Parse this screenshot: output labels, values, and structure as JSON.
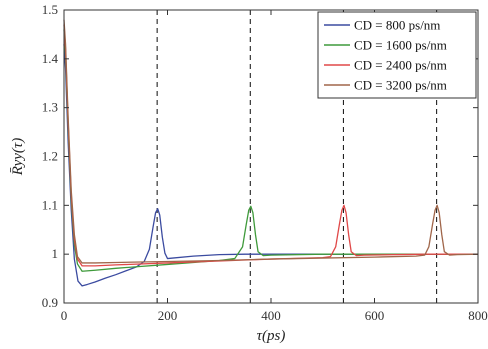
{
  "chart_data": {
    "type": "line",
    "title": "",
    "xlabel": "τ(ps)",
    "ylabel": "R̄yy(τ)",
    "xlim": [
      0,
      800
    ],
    "ylim": [
      0.9,
      1.5
    ],
    "xticks": [
      0,
      200,
      400,
      600,
      800
    ],
    "yticks": [
      0.9,
      1.0,
      1.1,
      1.2,
      1.3,
      1.4,
      1.5
    ],
    "xtick_labels": [
      "0",
      "200",
      "400",
      "600",
      "800"
    ],
    "ytick_labels": [
      "0.9",
      "1",
      "1.1",
      "1.2",
      "1.3",
      "1.4",
      "1.5"
    ],
    "grid": false,
    "legend_position": "top-right",
    "vlines": [
      180,
      360,
      540,
      720
    ],
    "vline_style": "dashed",
    "series": [
      {
        "name": "CD = 800 ps/nm",
        "color": "#3b4ba0",
        "x": [
          0,
          3,
          8,
          14,
          20,
          27,
          35,
          45,
          60,
          80,
          100,
          120,
          140,
          155,
          165,
          172,
          177,
          181,
          185,
          190,
          195,
          200,
          210,
          250,
          300,
          350,
          400,
          500,
          600,
          700,
          800
        ],
        "y": [
          1.43,
          1.38,
          1.23,
          1.09,
          0.99,
          0.945,
          0.935,
          0.938,
          0.943,
          0.951,
          0.958,
          0.966,
          0.974,
          0.985,
          1.01,
          1.055,
          1.085,
          1.093,
          1.08,
          1.035,
          1.002,
          0.991,
          0.992,
          0.996,
          0.999,
          1.0,
          1.0,
          1.0,
          1.0,
          1.0,
          1.0
        ]
      },
      {
        "name": "CD = 1600 ps/nm",
        "color": "#3f9a3b",
        "x": [
          0,
          3,
          8,
          14,
          20,
          26,
          35,
          60,
          100,
          150,
          200,
          250,
          300,
          330,
          345,
          352,
          357,
          361,
          365,
          370,
          375,
          385,
          400,
          500,
          600,
          700,
          800
        ],
        "y": [
          1.46,
          1.41,
          1.26,
          1.11,
          1.02,
          0.98,
          0.965,
          0.967,
          0.971,
          0.975,
          0.979,
          0.983,
          0.987,
          0.991,
          1.015,
          1.06,
          1.09,
          1.098,
          1.085,
          1.04,
          1.005,
          0.997,
          0.998,
          1.0,
          1.0,
          1.0,
          1.0
        ]
      },
      {
        "name": "CD = 2400 ps/nm",
        "color": "#e04848",
        "x": [
          0,
          3,
          8,
          14,
          20,
          26,
          35,
          60,
          100,
          200,
          300,
          400,
          500,
          515,
          525,
          532,
          537,
          541,
          545,
          550,
          555,
          565,
          580,
          700,
          800
        ],
        "y": [
          1.47,
          1.42,
          1.27,
          1.12,
          1.03,
          0.99,
          0.976,
          0.976,
          0.978,
          0.982,
          0.986,
          0.99,
          0.993,
          0.995,
          1.015,
          1.06,
          1.09,
          1.1,
          1.085,
          1.04,
          1.005,
          0.997,
          0.998,
          1.0,
          1.0
        ]
      },
      {
        "name": "CD = 3200 ps/nm",
        "color": "#a0664a",
        "x": [
          0,
          3,
          8,
          14,
          20,
          26,
          35,
          60,
          100,
          200,
          300,
          400,
          500,
          600,
          680,
          697,
          705,
          712,
          717,
          721,
          725,
          730,
          735,
          745,
          760,
          800
        ],
        "y": [
          1.48,
          1.43,
          1.28,
          1.13,
          1.04,
          0.995,
          0.982,
          0.982,
          0.983,
          0.985,
          0.987,
          0.99,
          0.992,
          0.994,
          0.996,
          0.998,
          1.015,
          1.06,
          1.09,
          1.1,
          1.085,
          1.04,
          1.005,
          0.998,
          0.999,
          1.0
        ]
      }
    ]
  }
}
